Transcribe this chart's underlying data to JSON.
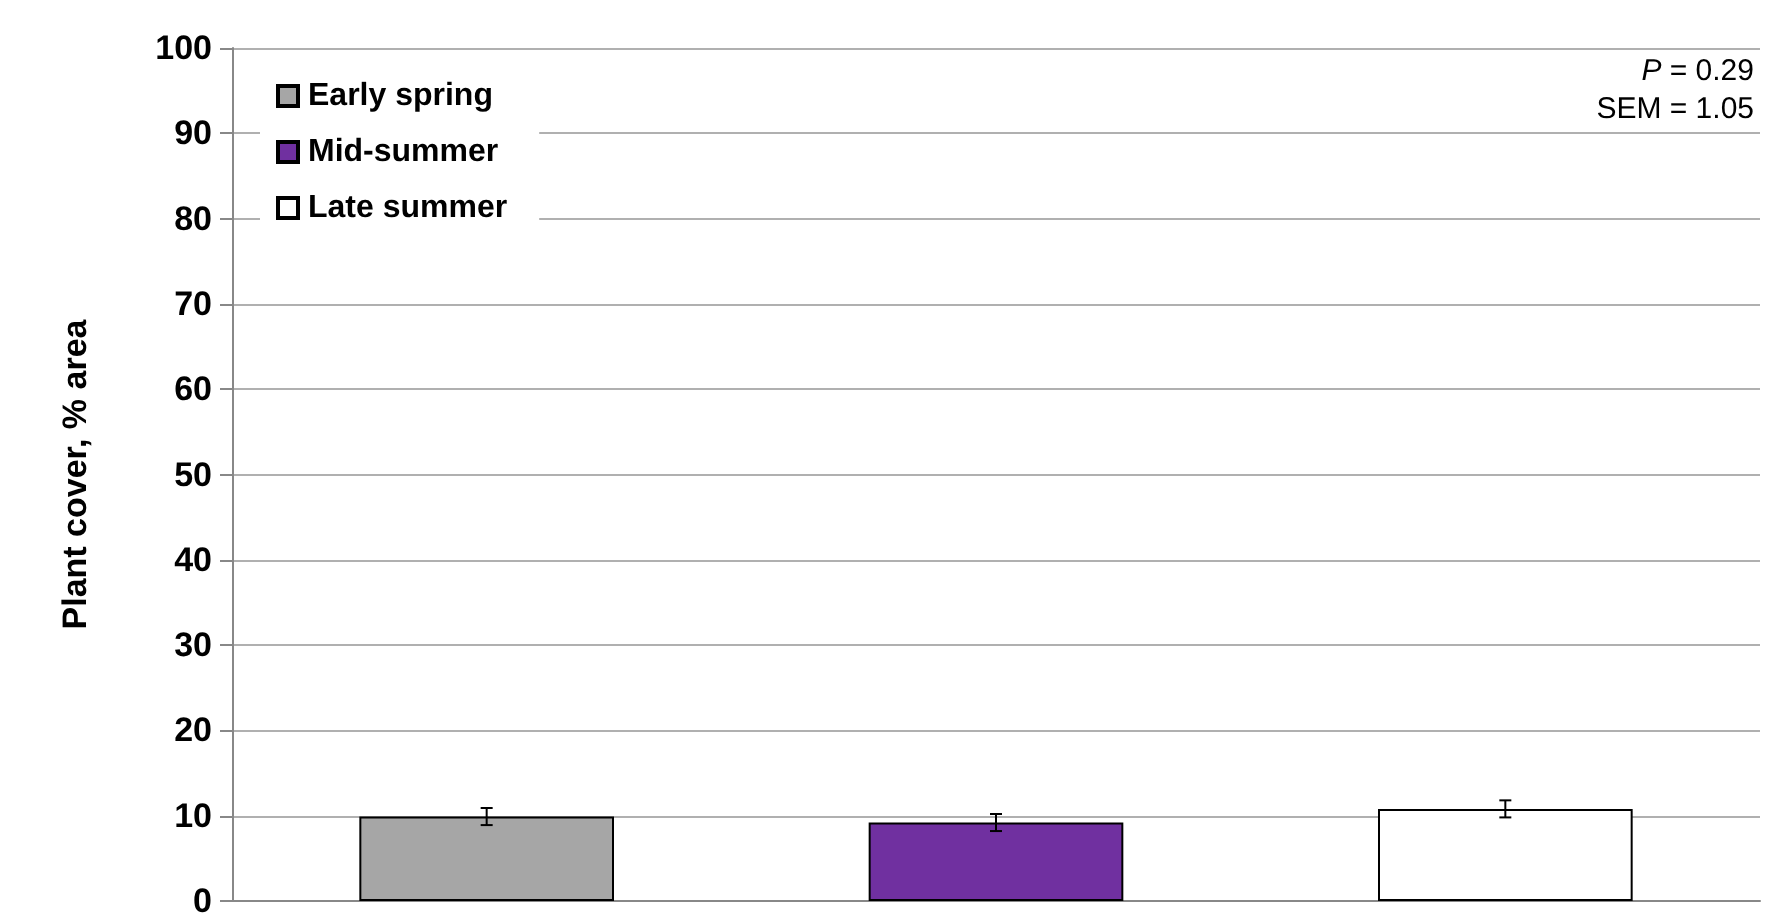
{
  "chart_data": {
    "type": "bar",
    "ylabel": "Plant cover, % area",
    "categories": [
      null,
      null,
      null
    ],
    "series": [
      {
        "name": "Early spring",
        "color": "#a6a6a6",
        "values": [
          9.9,
          null,
          null
        ],
        "errors": [
          1.0,
          null,
          null
        ]
      },
      {
        "name": "Mid-summer",
        "color": "#7030a0",
        "values": [
          null,
          9.2,
          null
        ],
        "errors": [
          null,
          1.0,
          null
        ]
      },
      {
        "name": "Late summer",
        "color": "#ffffff",
        "values": [
          null,
          null,
          10.8
        ],
        "errors": [
          null,
          null,
          1.0
        ]
      }
    ],
    "ylim": [
      0,
      100
    ],
    "yticks": [
      0,
      10,
      20,
      30,
      40,
      50,
      60,
      70,
      80,
      90,
      100
    ],
    "grid": "y",
    "legend": "top left",
    "annotations": [
      "P = 0.29",
      "SEM = 1.05"
    ]
  }
}
